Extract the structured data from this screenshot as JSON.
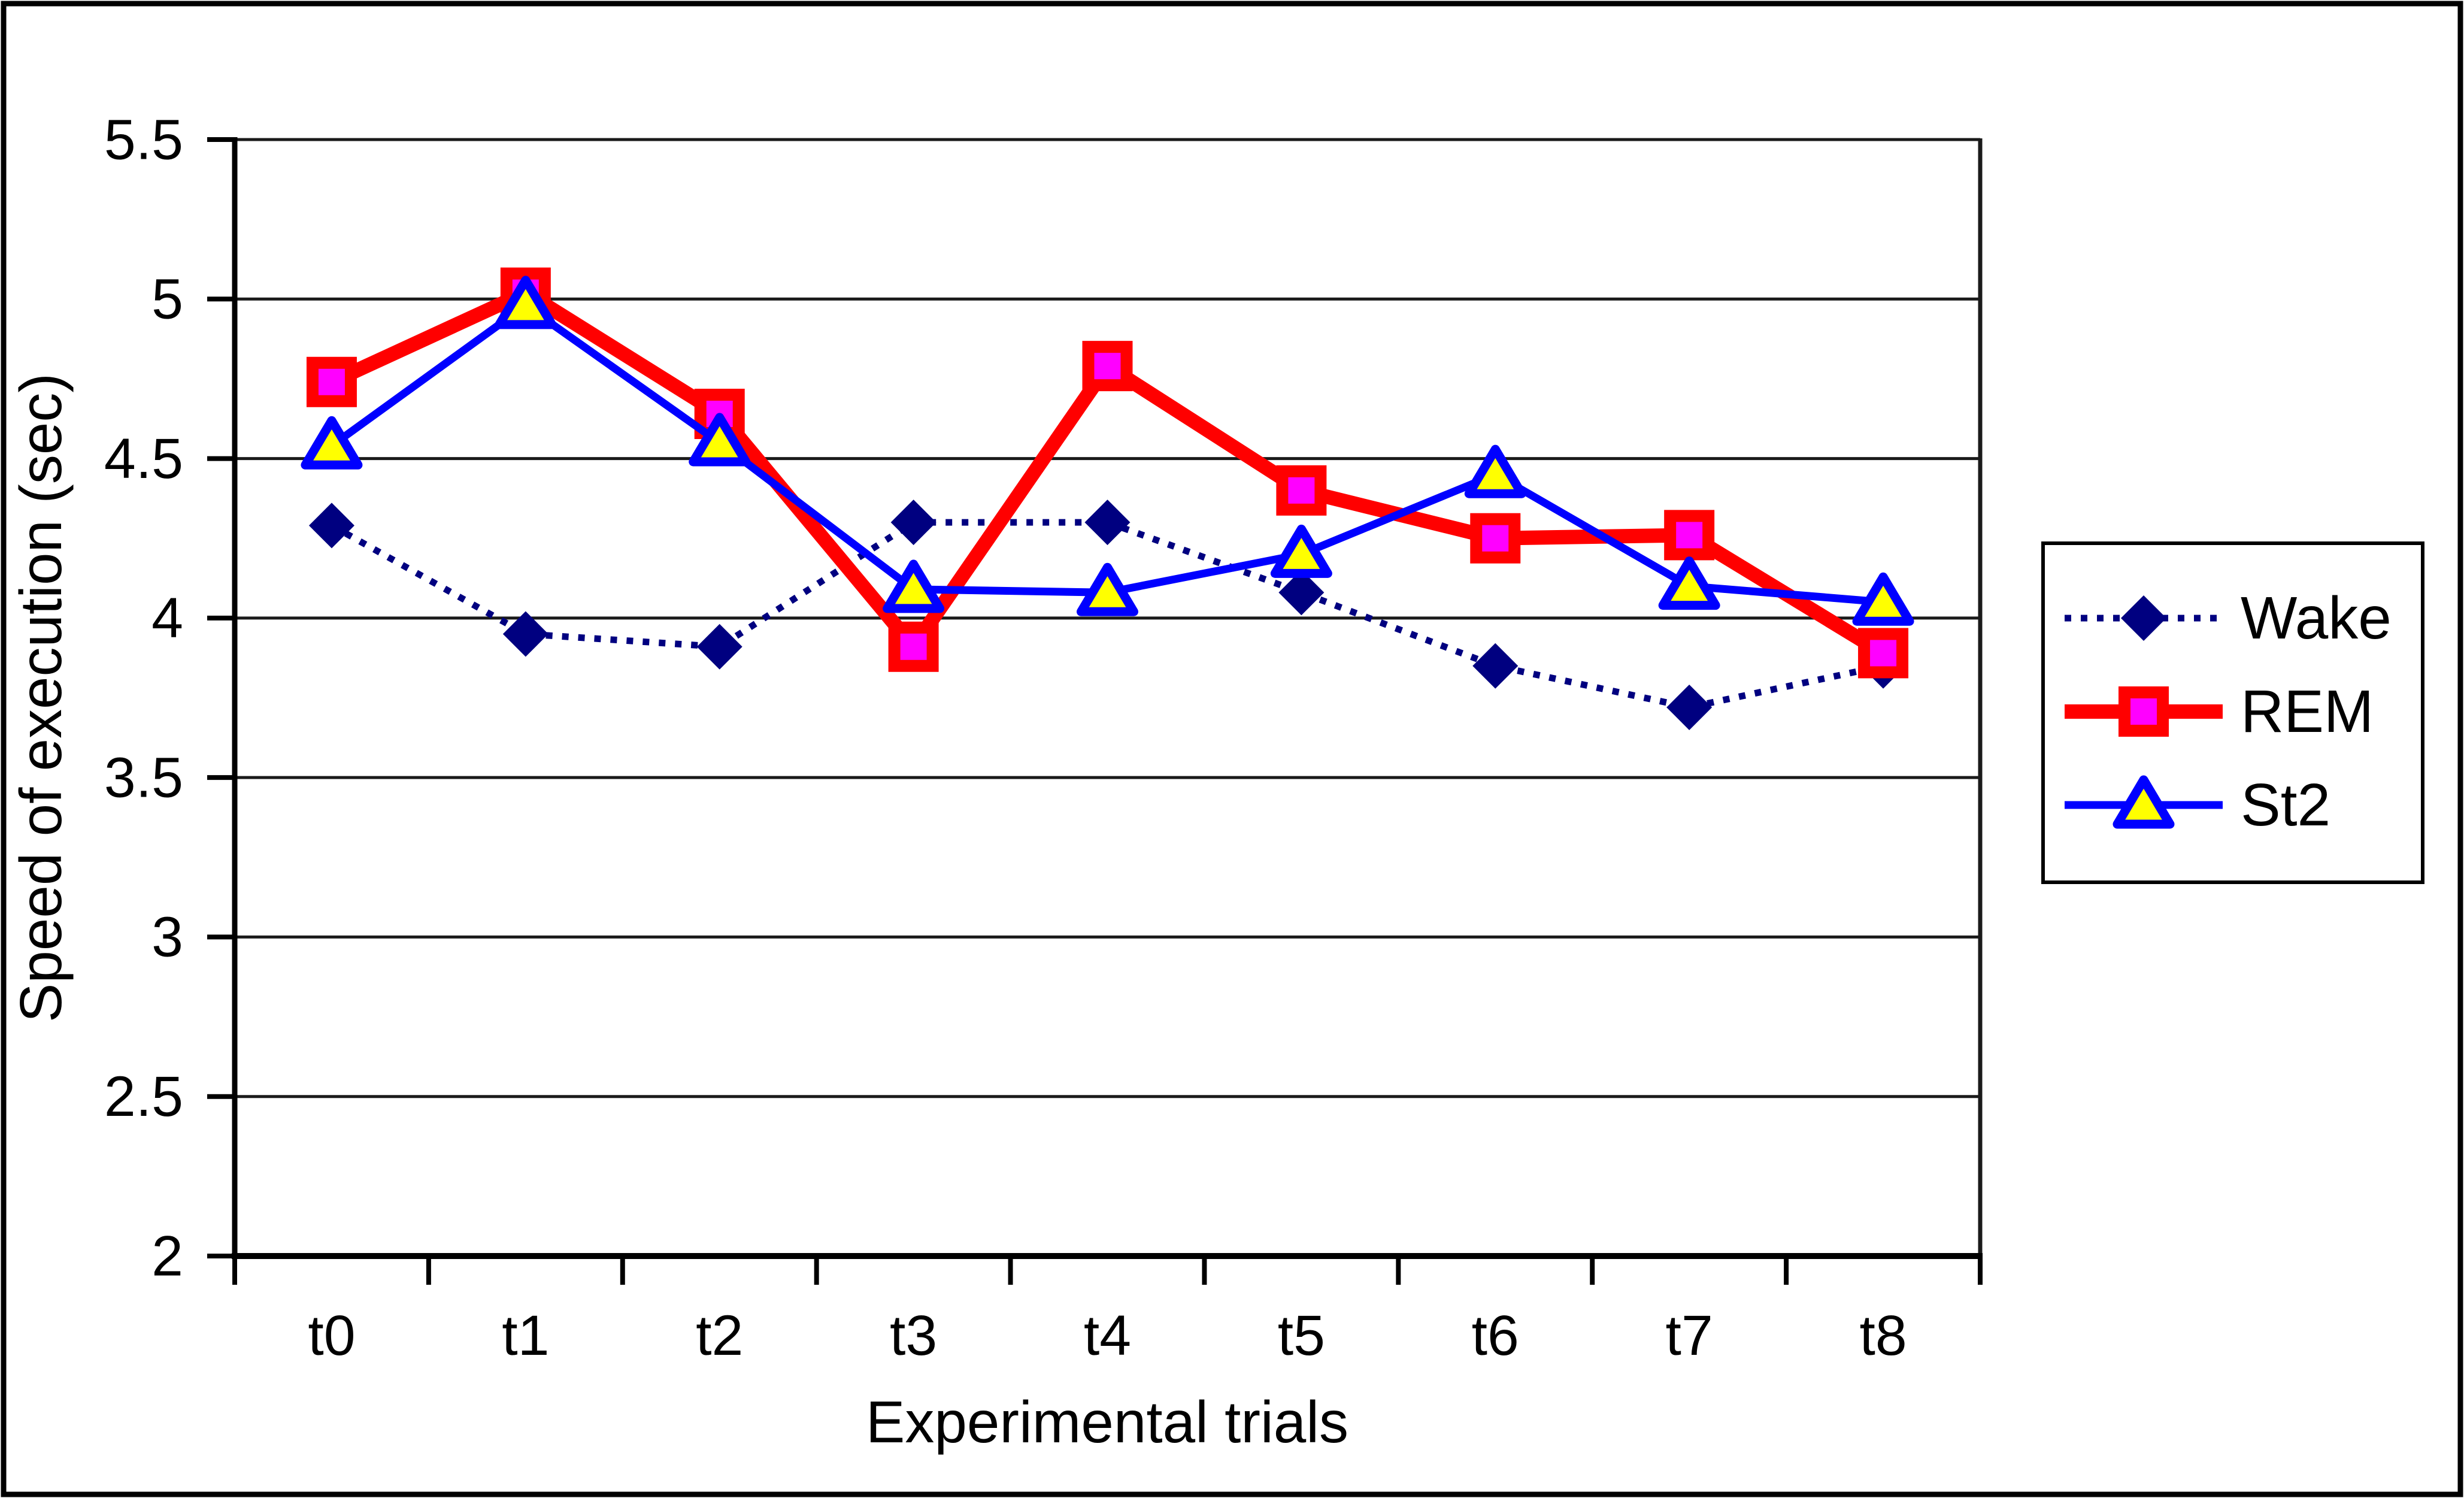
{
  "figure": {
    "background": "#FFFFFF",
    "border_color": "#000000"
  },
  "chart_data": {
    "type": "line",
    "xlabel": "Experimental trials",
    "ylabel": "Speed of execution (sec)",
    "categories": [
      "t0",
      "t1",
      "t2",
      "t3",
      "t4",
      "t5",
      "t6",
      "t7",
      "t8"
    ],
    "ylim": [
      2,
      5.5
    ],
    "ytick_step": 0.5,
    "ytick_labels": [
      "2",
      "2.5",
      "3",
      "3.5",
      "4",
      "4.5",
      "5",
      "5.5"
    ],
    "grid": true,
    "legend_position": "right",
    "series": [
      {
        "name": "Wake",
        "values": [
          4.29,
          3.95,
          3.91,
          4.3,
          4.3,
          4.08,
          3.85,
          3.72,
          3.85
        ],
        "line_color": "#000080",
        "line_style": "dotted",
        "marker": "diamond",
        "marker_fill": "#000080",
        "marker_border": "#000080"
      },
      {
        "name": "REM",
        "values": [
          4.74,
          5.02,
          4.64,
          3.91,
          4.79,
          4.4,
          4.25,
          4.26,
          3.89
        ],
        "line_color": "#FF0000",
        "line_style": "solid",
        "marker": "square",
        "marker_fill": "#FF00FF",
        "marker_border": "#FF0000"
      },
      {
        "name": "St2",
        "values": [
          4.54,
          4.98,
          4.55,
          4.09,
          4.08,
          4.2,
          4.45,
          4.1,
          4.05
        ],
        "line_color": "#0000FF",
        "line_style": "solid",
        "marker": "triangle",
        "marker_fill": "#FFFF00",
        "marker_border": "#0000FF"
      }
    ]
  }
}
